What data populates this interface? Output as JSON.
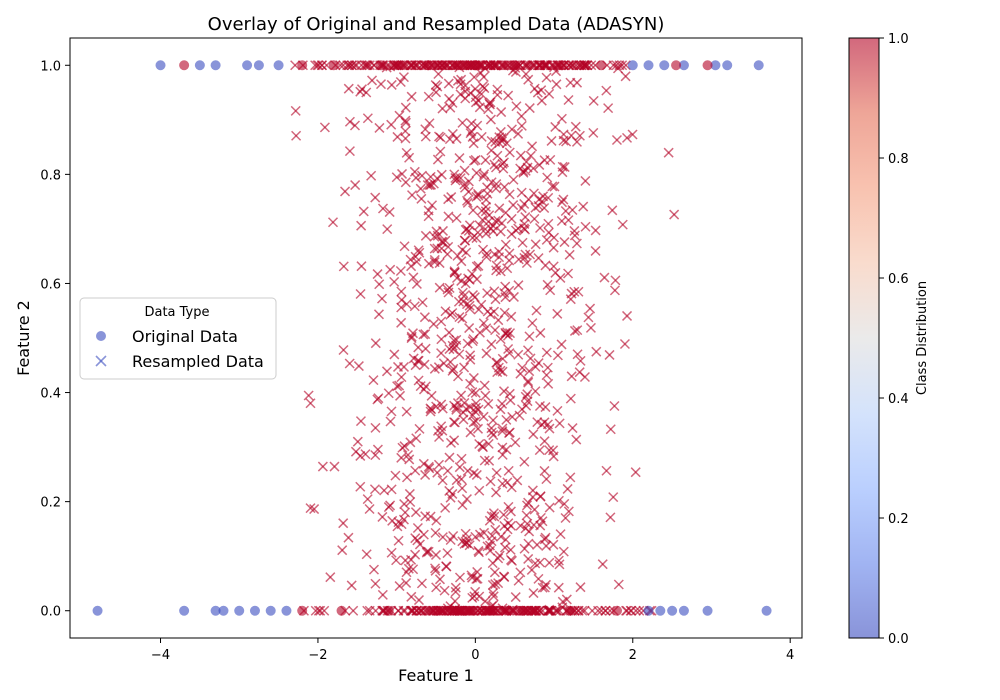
{
  "chart_data": {
    "type": "scatter",
    "title": "Overlay of Original and Resampled Data (ADASYN)",
    "xlabel": "Feature 1",
    "ylabel": "Feature 2",
    "xlim": [
      -5.15,
      4.15
    ],
    "ylim": [
      -0.05,
      1.05
    ],
    "xticks": [
      -4,
      -2,
      0,
      2,
      4
    ],
    "xtick_labels": [
      "−4",
      "−2",
      "0",
      "2",
      "4"
    ],
    "yticks": [
      0.0,
      0.2,
      0.4,
      0.6,
      0.8,
      1.0
    ],
    "ytick_labels": [
      "0.0",
      "0.2",
      "0.4",
      "0.6",
      "0.8",
      "1.0"
    ],
    "grid": false,
    "legend": {
      "title": "Data Type",
      "placement": "center-left",
      "entries": [
        "Original Data",
        "Resampled Data"
      ],
      "color": "#3b4cc0"
    },
    "colorbar": {
      "label": "Class Distribution",
      "colormap": "coolwarm",
      "range": [
        0.0,
        1.0
      ],
      "ticks": [
        0.0,
        0.2,
        0.4,
        0.6,
        0.8,
        1.0
      ],
      "tick_labels": [
        "0.0",
        "0.2",
        "0.4",
        "0.6",
        "0.8",
        "1.0"
      ],
      "colors": [
        "#3b4cc0",
        "#6282ea",
        "#8db0fe",
        "#b8d0f9",
        "#dddcdc",
        "#f5c4ac",
        "#f49a7b",
        "#e36a53",
        "#b40426"
      ]
    },
    "series": [
      {
        "name": "Original Data",
        "marker": "circle",
        "class0_color": "#3b4cc0",
        "class1_color": "#b40426",
        "points": [
          {
            "x": -4.8,
            "y": 0,
            "c": 0
          },
          {
            "x": -3.7,
            "y": 0,
            "c": 0
          },
          {
            "x": -3.3,
            "y": 0,
            "c": 0
          },
          {
            "x": -3.2,
            "y": 0,
            "c": 0
          },
          {
            "x": -3.0,
            "y": 0,
            "c": 0
          },
          {
            "x": -2.8,
            "y": 0,
            "c": 0
          },
          {
            "x": -2.6,
            "y": 0,
            "c": 0
          },
          {
            "x": -2.4,
            "y": 0,
            "c": 0
          },
          {
            "x": 2.2,
            "y": 0,
            "c": 0
          },
          {
            "x": 2.35,
            "y": 0,
            "c": 0
          },
          {
            "x": 2.5,
            "y": 0,
            "c": 0
          },
          {
            "x": 2.65,
            "y": 0,
            "c": 0
          },
          {
            "x": 2.95,
            "y": 0,
            "c": 0
          },
          {
            "x": 3.7,
            "y": 0,
            "c": 0
          },
          {
            "x": -4.0,
            "y": 1,
            "c": 0
          },
          {
            "x": -3.5,
            "y": 1,
            "c": 0
          },
          {
            "x": -3.3,
            "y": 1,
            "c": 0
          },
          {
            "x": -2.9,
            "y": 1,
            "c": 0
          },
          {
            "x": -2.75,
            "y": 1,
            "c": 0
          },
          {
            "x": -2.5,
            "y": 1,
            "c": 0
          },
          {
            "x": 2.0,
            "y": 1,
            "c": 0
          },
          {
            "x": 2.2,
            "y": 1,
            "c": 0
          },
          {
            "x": 2.4,
            "y": 1,
            "c": 0
          },
          {
            "x": 2.65,
            "y": 1,
            "c": 0
          },
          {
            "x": 3.05,
            "y": 1,
            "c": 0
          },
          {
            "x": 3.2,
            "y": 1,
            "c": 0
          },
          {
            "x": 3.6,
            "y": 1,
            "c": 0
          },
          {
            "x": -3.7,
            "y": 1,
            "c": 1
          },
          {
            "x": -2.2,
            "y": 1,
            "c": 1
          },
          {
            "x": -1.8,
            "y": 1,
            "c": 1
          },
          {
            "x": -1.2,
            "y": 1,
            "c": 1
          },
          {
            "x": -0.6,
            "y": 1,
            "c": 1
          },
          {
            "x": 0.0,
            "y": 1,
            "c": 1
          },
          {
            "x": 0.5,
            "y": 1,
            "c": 1
          },
          {
            "x": 1.1,
            "y": 1,
            "c": 1
          },
          {
            "x": 1.6,
            "y": 1,
            "c": 1
          },
          {
            "x": 2.55,
            "y": 1,
            "c": 1
          },
          {
            "x": 2.95,
            "y": 1,
            "c": 1
          },
          {
            "x": -2.2,
            "y": 0,
            "c": 1
          },
          {
            "x": -1.7,
            "y": 0,
            "c": 1
          },
          {
            "x": -1.1,
            "y": 0,
            "c": 1
          },
          {
            "x": -0.5,
            "y": 0,
            "c": 1
          },
          {
            "x": 0.1,
            "y": 0,
            "c": 1
          },
          {
            "x": 0.6,
            "y": 0,
            "c": 1
          },
          {
            "x": 1.2,
            "y": 0,
            "c": 1
          },
          {
            "x": 1.8,
            "y": 0,
            "c": 1
          }
        ]
      },
      {
        "name": "Resampled Data",
        "marker": "x",
        "class0_color": "#3b4cc0",
        "class1_color": "#b40426",
        "distribution": "class 1 points spread along y between 0 and 1, densest for Feature 1 between -1 and 1"
      }
    ]
  }
}
